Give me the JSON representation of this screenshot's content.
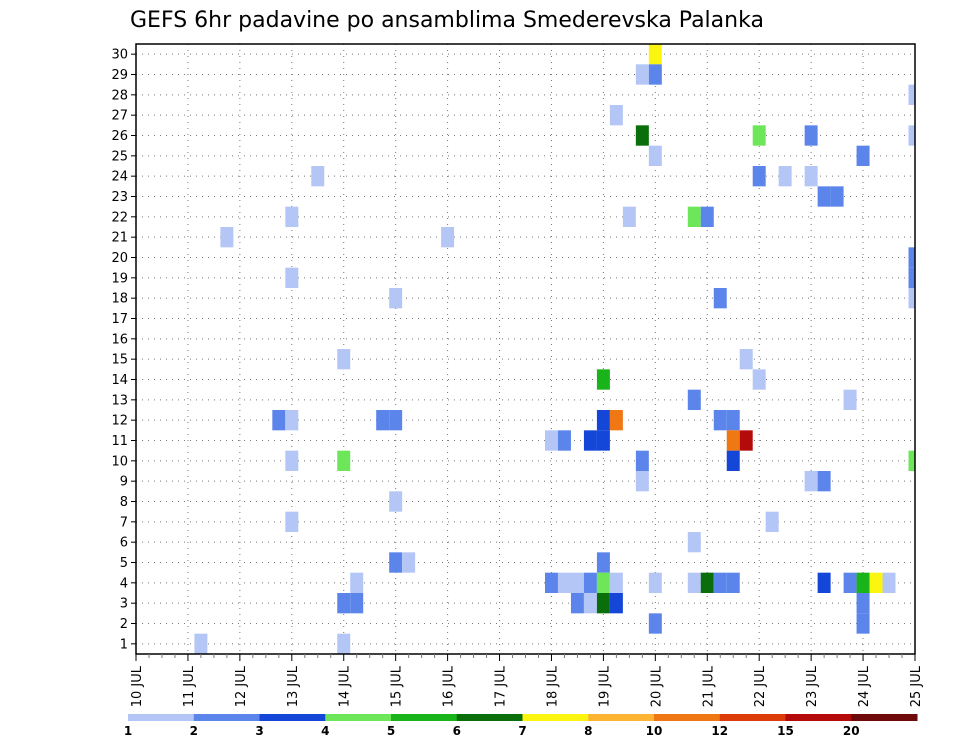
{
  "chart_data": {
    "type": "heatmap",
    "title": "GEFS 6hr padavine po ansamblima Smederevska Palanka",
    "xlabel": "",
    "ylabel": "",
    "x_ticks": [
      "10 JUL",
      "11 JUL",
      "12 JUL",
      "13 JUL",
      "14 JUL",
      "15 JUL",
      "16 JUL",
      "17 JUL",
      "18 JUL",
      "19 JUL",
      "20 JUL",
      "21 JUL",
      "22 JUL",
      "23 JUL",
      "24 JUL",
      "25 JUL"
    ],
    "y_ticks": [
      "1",
      "2",
      "3",
      "4",
      "5",
      "6",
      "7",
      "8",
      "9",
      "10",
      "11",
      "12",
      "13",
      "14",
      "15",
      "16",
      "17",
      "18",
      "19",
      "20",
      "21",
      "22",
      "23",
      "24",
      "25",
      "26",
      "27",
      "28",
      "29",
      "30"
    ],
    "xlim": [
      0,
      60
    ],
    "ylim": [
      0.5,
      30.5
    ],
    "grid": true,
    "colorbar": {
      "labels": [
        "1",
        "2",
        "3",
        "4",
        "5",
        "6",
        "7",
        "8",
        "10",
        "12",
        "15",
        "20"
      ],
      "colors": [
        "#b4c6f5",
        "#5b85ea",
        "#1446d8",
        "#6ee65a",
        "#19b419",
        "#0a6e0a",
        "#fcf50f",
        "#fcb432",
        "#f07814",
        "#dc3c0a",
        "#b40a0a",
        "#6e0a0a"
      ]
    },
    "cells": [
      [
        30,
        40,
        "#fcf50f"
      ],
      [
        29,
        39,
        "#b4c6f5"
      ],
      [
        29,
        40,
        "#5b85ea"
      ],
      [
        28,
        60,
        "#b4c6f5"
      ],
      [
        27,
        37,
        "#b4c6f5"
      ],
      [
        26,
        39,
        "#0a6e0a"
      ],
      [
        26,
        48,
        "#6ee65a"
      ],
      [
        26,
        52,
        "#5b85ea"
      ],
      [
        26,
        60,
        "#b4c6f5"
      ],
      [
        25,
        40,
        "#b4c6f5"
      ],
      [
        25,
        56,
        "#5b85ea"
      ],
      [
        24,
        14,
        "#b4c6f5"
      ],
      [
        24,
        48,
        "#5b85ea"
      ],
      [
        24,
        50,
        "#b4c6f5"
      ],
      [
        24,
        52,
        "#b4c6f5"
      ],
      [
        23,
        53,
        "#5b85ea"
      ],
      [
        23,
        54,
        "#5b85ea"
      ],
      [
        22,
        12,
        "#b4c6f5"
      ],
      [
        22,
        38,
        "#b4c6f5"
      ],
      [
        22,
        43,
        "#6ee65a"
      ],
      [
        22,
        44,
        "#5b85ea"
      ],
      [
        21,
        7,
        "#b4c6f5"
      ],
      [
        21,
        24,
        "#b4c6f5"
      ],
      [
        20,
        60,
        "#5b85ea"
      ],
      [
        19,
        12,
        "#b4c6f5"
      ],
      [
        19,
        60,
        "#5b85ea"
      ],
      [
        18,
        20,
        "#b4c6f5"
      ],
      [
        18,
        45,
        "#5b85ea"
      ],
      [
        18,
        60,
        "#b4c6f5"
      ],
      [
        15,
        16,
        "#b4c6f5"
      ],
      [
        15,
        47,
        "#b4c6f5"
      ],
      [
        14,
        36,
        "#19b419"
      ],
      [
        14,
        48,
        "#b4c6f5"
      ],
      [
        13,
        43,
        "#5b85ea"
      ],
      [
        13,
        55,
        "#b4c6f5"
      ],
      [
        12,
        11,
        "#5b85ea"
      ],
      [
        12,
        12,
        "#b4c6f5"
      ],
      [
        12,
        19,
        "#5b85ea"
      ],
      [
        12,
        20,
        "#5b85ea"
      ],
      [
        12,
        36,
        "#1446d8"
      ],
      [
        12,
        37,
        "#f07814"
      ],
      [
        12,
        45,
        "#5b85ea"
      ],
      [
        12,
        46,
        "#5b85ea"
      ],
      [
        11,
        32,
        "#b4c6f5"
      ],
      [
        11,
        33,
        "#5b85ea"
      ],
      [
        11,
        35,
        "#1446d8"
      ],
      [
        11,
        36,
        "#1446d8"
      ],
      [
        11,
        46,
        "#f07814"
      ],
      [
        11,
        47,
        "#b40a0a"
      ],
      [
        10,
        12,
        "#b4c6f5"
      ],
      [
        10,
        16,
        "#6ee65a"
      ],
      [
        10,
        39,
        "#5b85ea"
      ],
      [
        10,
        46,
        "#1446d8"
      ],
      [
        10,
        60,
        "#6ee65a"
      ],
      [
        9,
        39,
        "#b4c6f5"
      ],
      [
        9,
        52,
        "#b4c6f5"
      ],
      [
        9,
        53,
        "#5b85ea"
      ],
      [
        8,
        20,
        "#b4c6f5"
      ],
      [
        7,
        12,
        "#b4c6f5"
      ],
      [
        7,
        49,
        "#b4c6f5"
      ],
      [
        6,
        43,
        "#b4c6f5"
      ],
      [
        5,
        20,
        "#5b85ea"
      ],
      [
        5,
        21,
        "#b4c6f5"
      ],
      [
        5,
        36,
        "#5b85ea"
      ],
      [
        4,
        17,
        "#b4c6f5"
      ],
      [
        4,
        32,
        "#5b85ea"
      ],
      [
        4,
        33,
        "#b4c6f5"
      ],
      [
        4,
        34,
        "#b4c6f5"
      ],
      [
        4,
        35,
        "#5b85ea"
      ],
      [
        4,
        36,
        "#6ee65a"
      ],
      [
        4,
        37,
        "#b4c6f5"
      ],
      [
        4,
        40,
        "#b4c6f5"
      ],
      [
        4,
        43,
        "#b4c6f5"
      ],
      [
        4,
        44,
        "#0a6e0a"
      ],
      [
        4,
        45,
        "#5b85ea"
      ],
      [
        4,
        46,
        "#5b85ea"
      ],
      [
        4,
        53,
        "#1446d8"
      ],
      [
        4,
        55,
        "#5b85ea"
      ],
      [
        4,
        56,
        "#19b419"
      ],
      [
        4,
        57,
        "#fcf50f"
      ],
      [
        4,
        58,
        "#b4c6f5"
      ],
      [
        3,
        16,
        "#5b85ea"
      ],
      [
        3,
        17,
        "#5b85ea"
      ],
      [
        3,
        34,
        "#5b85ea"
      ],
      [
        3,
        35,
        "#b4c6f5"
      ],
      [
        3,
        36,
        "#0a6e0a"
      ],
      [
        3,
        37,
        "#1446d8"
      ],
      [
        3,
        56,
        "#5b85ea"
      ],
      [
        2,
        40,
        "#5b85ea"
      ],
      [
        2,
        56,
        "#5b85ea"
      ],
      [
        1,
        5,
        "#b4c6f5"
      ],
      [
        1,
        16,
        "#b4c6f5"
      ]
    ]
  }
}
